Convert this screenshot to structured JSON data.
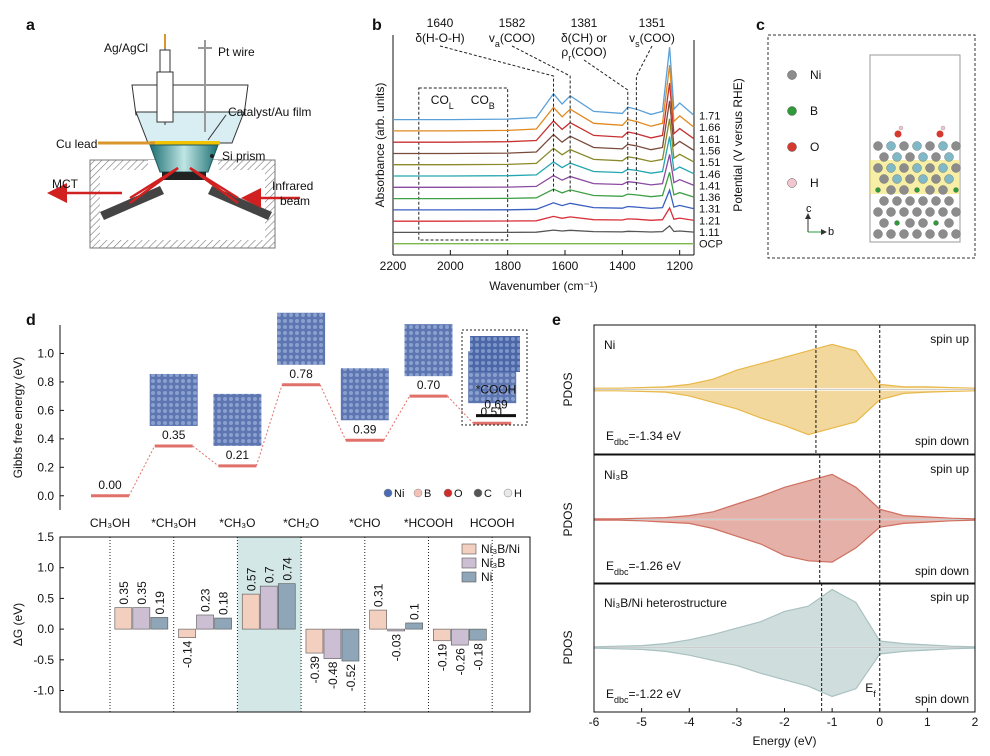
{
  "panel_labels": [
    "a",
    "b",
    "c",
    "d",
    "e"
  ],
  "setup_a": {
    "labels": [
      "Ag/AgCl",
      "Pt wire",
      "Catalyst/Au film",
      "Cu lead",
      "Si prism",
      "MCT"
    ],
    "beam_label": [
      "Infrared",
      "beam"
    ]
  },
  "structure_c": {
    "legend": [
      {
        "name": "Ni",
        "color": "#8c8c8c"
      },
      {
        "name": "B",
        "color": "#2e9a3a"
      },
      {
        "name": "O",
        "color": "#d63a2f"
      },
      {
        "name": "H",
        "color": "#f2c6d0"
      }
    ],
    "axes": [
      "c",
      "b"
    ]
  },
  "chart_data": [
    {
      "type": "line",
      "xlabel": "Wavenumber (cm⁻¹)",
      "ylabel": "Absorbance (arb. units)",
      "y2label": "Potential (V versus RHE)",
      "x": [
        2200,
        2000,
        1800,
        1700,
        1640,
        1610,
        1582,
        1500,
        1400,
        1381,
        1351,
        1300,
        1260,
        1235,
        1220,
        1200,
        1150
      ],
      "xlim": [
        2200,
        1150
      ],
      "xticks": [
        2200,
        2000,
        1800,
        1600,
        1400,
        1200
      ],
      "ylim": [
        -1,
        18.5
      ],
      "series": [
        {
          "name": "OCP",
          "color": "#7ab648",
          "values": [
            0,
            0,
            0,
            0,
            0,
            0,
            0,
            0,
            0,
            0,
            0,
            0,
            0,
            0,
            0,
            0,
            0
          ]
        },
        {
          "name": "1.11",
          "color": "#555555",
          "values": [
            1,
            1,
            1,
            1.02,
            1.21,
            1.13,
            1.19,
            1.07,
            1.05,
            1.1,
            1.08,
            1.04,
            1.07,
            1.58,
            1.08,
            1.13,
            1.03
          ]
        },
        {
          "name": "1.21",
          "color": "#d9303a",
          "values": [
            2,
            2,
            2.01,
            2.03,
            2.42,
            2.25,
            2.38,
            2.13,
            2.1,
            2.2,
            2.17,
            2.08,
            2.13,
            3.17,
            2.17,
            2.27,
            2.07
          ]
        },
        {
          "name": "1.31",
          "color": "#3b5fc0",
          "values": [
            3,
            3,
            3.01,
            3.05,
            3.63,
            3.38,
            3.58,
            3.2,
            3.15,
            3.3,
            3.25,
            3.13,
            3.2,
            4.75,
            3.25,
            3.4,
            3.1
          ]
        },
        {
          "name": "1.36",
          "color": "#3f9f45",
          "values": [
            4,
            4,
            4.02,
            4.07,
            4.83,
            4.5,
            4.77,
            4.27,
            4.2,
            4.4,
            4.33,
            4.17,
            4.27,
            6.33,
            4.33,
            4.53,
            4.13
          ]
        },
        {
          "name": "1.41",
          "color": "#8a4aa0",
          "values": [
            5,
            5,
            5.02,
            5.08,
            6.04,
            5.63,
            5.96,
            5.33,
            5.25,
            5.5,
            5.42,
            5.21,
            5.33,
            7.92,
            5.42,
            5.67,
            5.17
          ]
        },
        {
          "name": "1.46",
          "color": "#22a6b0",
          "values": [
            6,
            6,
            6.03,
            6.1,
            7.25,
            6.75,
            7.15,
            6.4,
            6.3,
            6.6,
            6.5,
            6.25,
            6.4,
            9.5,
            6.5,
            6.8,
            6.2
          ]
        },
        {
          "name": "1.51",
          "color": "#8a8a2a",
          "values": [
            7,
            7,
            7.03,
            7.12,
            8.46,
            7.88,
            8.34,
            7.47,
            7.35,
            7.7,
            7.58,
            7.29,
            7.47,
            11.08,
            7.58,
            7.93,
            7.23
          ]
        },
        {
          "name": "1.56",
          "color": "#7a4a3a",
          "values": [
            8,
            8,
            8.03,
            8.13,
            9.67,
            9,
            9.53,
            8.53,
            8.4,
            8.8,
            8.67,
            8.33,
            8.53,
            12.67,
            8.67,
            9.07,
            8.27
          ]
        },
        {
          "name": "1.61",
          "color": "#c83030",
          "values": [
            9,
            9,
            9.04,
            9.15,
            10.88,
            10.13,
            10.73,
            9.6,
            9.45,
            9.9,
            9.75,
            9.38,
            9.6,
            14.25,
            9.75,
            10.2,
            9.3
          ]
        },
        {
          "name": "1.66",
          "color": "#e08a20",
          "values": [
            10,
            10,
            10.04,
            10.17,
            12.08,
            11.25,
            11.92,
            10.67,
            10.5,
            11,
            10.83,
            10.42,
            10.67,
            15.83,
            10.83,
            11.33,
            10.33
          ]
        },
        {
          "name": "1.71",
          "color": "#5aa0d8",
          "values": [
            11,
            11,
            11.05,
            11.18,
            13.29,
            12.38,
            13.11,
            11.73,
            11.55,
            12.1,
            11.92,
            11.46,
            11.73,
            17.42,
            11.92,
            12.47,
            11.37
          ]
        }
      ],
      "annotations": [
        {
          "value": 1640,
          "lines": [
            [
              {
                "t": "δ(H-O-H)"
              }
            ]
          ]
        },
        {
          "value": 1582,
          "lines": [
            [
              {
                "t": "v"
              },
              {
                "sub": "a"
              },
              {
                "t": "(COO)"
              }
            ]
          ]
        },
        {
          "value": 1381,
          "lines": [
            [
              {
                "t": "δ(CH) or"
              }
            ],
            [
              {
                "t": "ρ"
              },
              {
                "sub": "r"
              },
              {
                "t": "(COO)"
              }
            ]
          ]
        },
        {
          "value": 1351,
          "lines": [
            [
              {
                "t": "v"
              },
              {
                "sub": "s"
              },
              {
                "t": "(COO)"
              }
            ]
          ]
        }
      ],
      "regions": [
        {
          "from": 2110,
          "to": 1800,
          "labels": [
            [
              {
                "t": "CO"
              },
              {
                "sub": "L"
              }
            ],
            [
              {
                "t": "CO"
              },
              {
                "sub": "B"
              }
            ]
          ]
        }
      ]
    },
    {
      "type": "energy_levels",
      "ylabel": "Gibbs free energy (eV)",
      "categories": [
        "CH₃OH",
        "*CH₃OH",
        "*CH₃O",
        "*CH₂O",
        "*CHO",
        "*HCOOH",
        "HCOOH"
      ],
      "values": [
        0,
        0.35,
        0.21,
        0.78,
        0.39,
        0.7,
        0.51
      ],
      "value_labels": [
        "0.00",
        "0.35",
        "0.21",
        "0.78",
        "0.39",
        "0.70",
        "0.51"
      ],
      "color": "#e0706a",
      "ylim": [
        -0.1,
        1.2
      ],
      "yticks": [
        {
          "value": 0,
          "label": "0.0"
        },
        0.2,
        0.4,
        0.6,
        0.8,
        {
          "value": 1,
          "label": "1.0"
        }
      ],
      "inset": {
        "name": "*COOH",
        "values": [
          0.69
        ],
        "value_labels": [
          "0.69"
        ]
      },
      "legend": [
        {
          "name": "Ni",
          "color": "#4a6bb5"
        },
        {
          "name": "B",
          "color": "#f2c2b8"
        },
        {
          "name": "O",
          "color": "#d22b2b"
        },
        {
          "name": "C",
          "color": "#555555"
        },
        {
          "name": "H",
          "color": "#e8e8e8"
        }
      ]
    },
    {
      "type": "bar",
      "ylabel": "ΔG (eV)",
      "ylim": [
        -1.35,
        1.5
      ],
      "yticks": [
        {
          "value": -1,
          "label": "-1.0"
        },
        -0.5,
        {
          "value": 0,
          "label": "0.0"
        },
        0.5,
        {
          "value": 1,
          "label": "1.0"
        },
        1.5
      ],
      "highlight_group": 2,
      "highlight_color": "#d3e7e6",
      "series": [
        {
          "name": "Ni₃B/Ni",
          "color": "#f3cfbf",
          "values": [
            0.35,
            -0.14,
            0.57,
            -0.39,
            0.31,
            -0.19
          ]
        },
        {
          "name": "Ni₃B",
          "color": "#cdbfd3",
          "values": [
            0.35,
            0.23,
            0.7,
            -0.48,
            -0.03,
            -0.26
          ]
        },
        {
          "name": "Ni",
          "color": "#8ea6b8",
          "values": [
            0.19,
            0.18,
            0.74,
            -0.52,
            0.1,
            -0.18
          ]
        }
      ]
    },
    {
      "type": "area",
      "title": "Ni",
      "ylabel": "PDOS",
      "color": "#e8b84a",
      "xlim": [
        -6,
        2
      ],
      "ylim": [
        -5,
        5
      ],
      "x": [
        -6,
        -5.5,
        -5,
        -4.5,
        -4,
        -3.5,
        -3,
        -2.5,
        -2,
        -1.5,
        -1,
        -0.5,
        0,
        0.5,
        1,
        1.5,
        2
      ],
      "series": [
        {
          "name": "spin up",
          "values": [
            0.1,
            0.1,
            0.15,
            0.2,
            0.4,
            0.8,
            1.5,
            2,
            2.5,
            3,
            3.5,
            3,
            0.4,
            0.2,
            0.2,
            0.15,
            0.1
          ]
        },
        {
          "name": "spin down",
          "values": [
            -0.1,
            -0.1,
            -0.15,
            -0.2,
            -0.5,
            -1,
            -1.5,
            -2.2,
            -2.8,
            -3.5,
            -3,
            -2.5,
            -0.8,
            -0.3,
            -0.2,
            -0.15,
            -0.1
          ]
        }
      ],
      "dbc": {
        "value": -1.34,
        "label": [
          {
            "t": "E"
          },
          {
            "sub": "dbc"
          },
          {
            "t": "=-1.34 eV"
          }
        ]
      },
      "fermi_level": 0
    },
    {
      "type": "area",
      "title": "Ni₃B",
      "ylabel": "PDOS",
      "color": "#cf6f60",
      "xlim": [
        -6,
        2
      ],
      "ylim": [
        -5,
        5
      ],
      "x": [
        -6,
        -5.5,
        -5,
        -4.5,
        -4,
        -3.5,
        -3,
        -2.5,
        -2,
        -1.5,
        -1,
        -0.5,
        0,
        0.5,
        1,
        1.5,
        2
      ],
      "series": [
        {
          "name": "spin up",
          "values": [
            0.05,
            0.05,
            0.1,
            0.15,
            0.3,
            0.6,
            1.2,
            1.8,
            2.5,
            3,
            3.5,
            2.5,
            0.8,
            0.3,
            0.2,
            0.1,
            0.05
          ]
        },
        {
          "name": "spin down",
          "values": [
            -0.05,
            -0.05,
            -0.1,
            -0.2,
            -0.3,
            -0.7,
            -1.3,
            -1.9,
            -2.8,
            -3.2,
            -3.3,
            -2.2,
            -0.6,
            -0.3,
            -0.2,
            -0.1,
            -0.05
          ]
        }
      ],
      "dbc": {
        "value": -1.26,
        "label": [
          {
            "t": "E"
          },
          {
            "sub": "dbc"
          },
          {
            "t": "=-1.26 eV"
          }
        ]
      },
      "fermi_level": 0
    },
    {
      "type": "area",
      "title": "Ni₃B/Ni heterostructure",
      "ylabel": "PDOS",
      "color": "#a9c1c1",
      "xlim": [
        -6,
        2
      ],
      "ylim": [
        -5,
        5
      ],
      "x": [
        -6,
        -5.5,
        -5,
        -4.5,
        -4,
        -3.5,
        -3,
        -2.5,
        -2,
        -1.5,
        -1,
        -0.5,
        0,
        0.5,
        1,
        1.5,
        2
      ],
      "series": [
        {
          "name": "spin up",
          "values": [
            0.05,
            0.1,
            0.15,
            0.3,
            0.6,
            1,
            1.5,
            2,
            2.8,
            3.2,
            4.5,
            3.5,
            0.5,
            0.3,
            0.2,
            0.1,
            0.05
          ]
        },
        {
          "name": "spin down",
          "values": [
            -0.05,
            -0.1,
            -0.15,
            -0.3,
            -0.6,
            -1,
            -1.4,
            -2,
            -2.5,
            -3,
            -3.8,
            -3.2,
            -0.5,
            -0.3,
            -0.2,
            -0.1,
            -0.05
          ]
        }
      ],
      "dbc": {
        "value": -1.22,
        "label": [
          {
            "t": "E"
          },
          {
            "sub": "dbc"
          },
          {
            "t": "=-1.22 eV"
          }
        ]
      },
      "fermi_level": 0,
      "fermi_label": [
        {
          "t": "E"
        },
        {
          "sub": "f"
        }
      ],
      "xlabel": "Energy (eV)",
      "xticks": [
        -6,
        -5,
        -4,
        -3,
        -2,
        -1,
        0,
        1,
        2
      ]
    }
  ]
}
